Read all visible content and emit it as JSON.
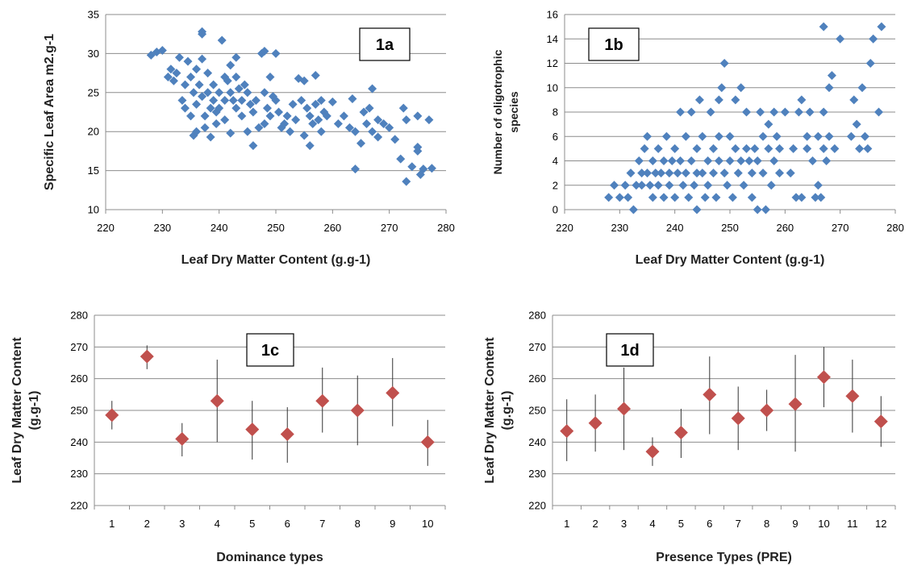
{
  "chart_data": [
    {
      "id": "1a",
      "type": "scatter",
      "panel_label": "1a",
      "xlabel": "Leaf Dry Matter  Content (g.g-1)",
      "ylabel": "Specific Leaf Area m2.g-1",
      "xlim": [
        220,
        280
      ],
      "ylim": [
        10,
        35
      ],
      "xticks": [
        220,
        230,
        240,
        250,
        260,
        270,
        280
      ],
      "yticks": [
        10,
        15,
        20,
        25,
        30,
        35
      ],
      "grid": "horizontal",
      "marker_color": "#4F81BD",
      "points": [
        [
          228,
          29.8
        ],
        [
          229,
          30.2
        ],
        [
          230,
          30.4
        ],
        [
          231,
          27
        ],
        [
          231.5,
          28
        ],
        [
          232,
          26.5
        ],
        [
          232.5,
          27.5
        ],
        [
          233,
          29.5
        ],
        [
          233.5,
          24
        ],
        [
          234,
          26
        ],
        [
          234,
          23
        ],
        [
          234.5,
          29
        ],
        [
          235,
          27
        ],
        [
          235,
          22
        ],
        [
          235.5,
          25
        ],
        [
          235.5,
          19.5
        ],
        [
          236,
          28
        ],
        [
          236,
          23.5
        ],
        [
          236,
          20
        ],
        [
          236.5,
          26
        ],
        [
          237,
          32.8
        ],
        [
          237,
          32.5
        ],
        [
          237,
          29.3
        ],
        [
          237,
          24.5
        ],
        [
          237.5,
          22
        ],
        [
          237.5,
          20.5
        ],
        [
          238,
          27.5
        ],
        [
          238,
          25
        ],
        [
          238.5,
          23
        ],
        [
          238.5,
          19.3
        ],
        [
          239,
          26
        ],
        [
          239,
          24
        ],
        [
          239.5,
          22.5
        ],
        [
          239.5,
          21
        ],
        [
          240,
          25
        ],
        [
          240,
          23
        ],
        [
          240.5,
          31.7
        ],
        [
          241,
          27
        ],
        [
          241,
          24
        ],
        [
          241,
          21.5
        ],
        [
          241.5,
          26.5
        ],
        [
          242,
          28.5
        ],
        [
          242,
          25
        ],
        [
          242,
          19.8
        ],
        [
          242.5,
          24
        ],
        [
          243,
          29.5
        ],
        [
          243,
          27
        ],
        [
          243,
          23
        ],
        [
          243.5,
          25.5
        ],
        [
          244,
          24
        ],
        [
          244,
          22
        ],
        [
          244.5,
          26
        ],
        [
          245,
          20
        ],
        [
          245,
          25
        ],
        [
          245.5,
          23.5
        ],
        [
          246,
          22.5
        ],
        [
          246,
          18.2
        ],
        [
          246.5,
          24
        ],
        [
          247,
          20.5
        ],
        [
          247.5,
          30
        ],
        [
          248,
          30.3
        ],
        [
          248,
          25
        ],
        [
          248,
          21
        ],
        [
          248.5,
          23
        ],
        [
          249,
          27
        ],
        [
          249,
          22
        ],
        [
          249.5,
          24.5
        ],
        [
          250,
          30
        ],
        [
          250,
          24
        ],
        [
          250.5,
          22.5
        ],
        [
          251,
          20.5
        ],
        [
          251.5,
          21
        ],
        [
          252,
          22
        ],
        [
          252.5,
          20
        ],
        [
          253,
          23.5
        ],
        [
          253.5,
          21.5
        ],
        [
          254,
          26.8
        ],
        [
          254.5,
          24
        ],
        [
          255,
          26.5
        ],
        [
          255,
          19.5
        ],
        [
          255.5,
          23
        ],
        [
          256,
          22
        ],
        [
          256,
          18.2
        ],
        [
          256.5,
          21
        ],
        [
          257,
          27.2
        ],
        [
          257,
          23.5
        ],
        [
          257.5,
          21.5
        ],
        [
          258,
          24
        ],
        [
          258,
          20
        ],
        [
          258.5,
          22.5
        ],
        [
          259,
          22
        ],
        [
          260,
          23.8
        ],
        [
          261,
          21
        ],
        [
          262,
          22
        ],
        [
          263,
          20.5
        ],
        [
          263.5,
          24.2
        ],
        [
          264,
          15.2
        ],
        [
          264,
          20
        ],
        [
          265,
          18.5
        ],
        [
          265.5,
          22.5
        ],
        [
          266,
          21
        ],
        [
          266.5,
          23
        ],
        [
          267,
          25.5
        ],
        [
          267,
          20
        ],
        [
          268,
          21.5
        ],
        [
          268,
          19.3
        ],
        [
          269,
          21
        ],
        [
          270,
          20.5
        ],
        [
          271,
          19
        ],
        [
          272,
          16.5
        ],
        [
          272.5,
          23
        ],
        [
          273,
          13.6
        ],
        [
          273,
          21.5
        ],
        [
          274,
          15.5
        ],
        [
          275,
          22
        ],
        [
          275,
          18
        ],
        [
          275,
          17.5
        ],
        [
          275.5,
          14.5
        ],
        [
          276,
          15.2
        ],
        [
          277,
          21.5
        ],
        [
          277.5,
          15.3
        ]
      ]
    },
    {
      "id": "1b",
      "type": "scatter",
      "panel_label": "1b",
      "xlabel": "Leaf Dry Matter  Content (g.g-1)",
      "ylabel_lines": [
        "Number of oligotrophic",
        "species"
      ],
      "xlim": [
        220,
        280
      ],
      "ylim": [
        0,
        16
      ],
      "xticks": [
        220,
        230,
        240,
        250,
        260,
        270,
        280
      ],
      "yticks": [
        0,
        2,
        4,
        6,
        8,
        10,
        12,
        14,
        16
      ],
      "grid": "horizontal",
      "marker_color": "#4F81BD",
      "points": [
        [
          228,
          1
        ],
        [
          229,
          2
        ],
        [
          230,
          1
        ],
        [
          231,
          2
        ],
        [
          231.5,
          1
        ],
        [
          232,
          3
        ],
        [
          232.5,
          0
        ],
        [
          233,
          2
        ],
        [
          233.5,
          4
        ],
        [
          234,
          3
        ],
        [
          234,
          2
        ],
        [
          234.5,
          5
        ],
        [
          235,
          6
        ],
        [
          235,
          3
        ],
        [
          235.5,
          2
        ],
        [
          236,
          4
        ],
        [
          236,
          1
        ],
        [
          236.5,
          3
        ],
        [
          237,
          5
        ],
        [
          237,
          2
        ],
        [
          237.5,
          3
        ],
        [
          238,
          4
        ],
        [
          238,
          1
        ],
        [
          238.5,
          6
        ],
        [
          239,
          3
        ],
        [
          239,
          2
        ],
        [
          239.5,
          4
        ],
        [
          240,
          5
        ],
        [
          240,
          1
        ],
        [
          240.5,
          3
        ],
        [
          241,
          8
        ],
        [
          241,
          4
        ],
        [
          241.5,
          2
        ],
        [
          242,
          6
        ],
        [
          242,
          3
        ],
        [
          242.5,
          1
        ],
        [
          243,
          8
        ],
        [
          243,
          4
        ],
        [
          243.5,
          2
        ],
        [
          244,
          5
        ],
        [
          244,
          3
        ],
        [
          244,
          0
        ],
        [
          244.5,
          9
        ],
        [
          245,
          6
        ],
        [
          245,
          3
        ],
        [
          245.5,
          1
        ],
        [
          246,
          4
        ],
        [
          246,
          2
        ],
        [
          246.5,
          8
        ],
        [
          247,
          5
        ],
        [
          247,
          3
        ],
        [
          247.5,
          1
        ],
        [
          248,
          9
        ],
        [
          248,
          6
        ],
        [
          248,
          4
        ],
        [
          248.5,
          10
        ],
        [
          249,
          3
        ],
        [
          249,
          12
        ],
        [
          249.5,
          2
        ],
        [
          250,
          6
        ],
        [
          250,
          4
        ],
        [
          250.5,
          1
        ],
        [
          251,
          9
        ],
        [
          251,
          5
        ],
        [
          251.5,
          3
        ],
        [
          252,
          10
        ],
        [
          252,
          4
        ],
        [
          252.5,
          2
        ],
        [
          253,
          5
        ],
        [
          253,
          8
        ],
        [
          253.5,
          4
        ],
        [
          254,
          3
        ],
        [
          254,
          1
        ],
        [
          254.5,
          5
        ],
        [
          255,
          4
        ],
        [
          255,
          0
        ],
        [
          255.5,
          8
        ],
        [
          256,
          6
        ],
        [
          256,
          3
        ],
        [
          256.5,
          0
        ],
        [
          257,
          7
        ],
        [
          257,
          5
        ],
        [
          257.5,
          2
        ],
        [
          258,
          4
        ],
        [
          258,
          8
        ],
        [
          258.5,
          6
        ],
        [
          259,
          3
        ],
        [
          259,
          5
        ],
        [
          260,
          8
        ],
        [
          261,
          3
        ],
        [
          261.5,
          5
        ],
        [
          262,
          1
        ],
        [
          262.5,
          8
        ],
        [
          263,
          9
        ],
        [
          263,
          1
        ],
        [
          264,
          6
        ],
        [
          264,
          5
        ],
        [
          264.5,
          8
        ],
        [
          265,
          4
        ],
        [
          265.5,
          1
        ],
        [
          266,
          6
        ],
        [
          266,
          2
        ],
        [
          266.5,
          1
        ],
        [
          267,
          15
        ],
        [
          267,
          8
        ],
        [
          267,
          5
        ],
        [
          267.5,
          4
        ],
        [
          268,
          6
        ],
        [
          268,
          10
        ],
        [
          268.5,
          11
        ],
        [
          269,
          5
        ],
        [
          270,
          14
        ],
        [
          272,
          6
        ],
        [
          272.5,
          9
        ],
        [
          273,
          7
        ],
        [
          273.5,
          5
        ],
        [
          274,
          10
        ],
        [
          274.5,
          6
        ],
        [
          275,
          5
        ],
        [
          275.5,
          12
        ],
        [
          276,
          14
        ],
        [
          277,
          8
        ],
        [
          277.5,
          15
        ]
      ]
    },
    {
      "id": "1c",
      "type": "scatter",
      "panel_label": "1c",
      "xlabel": "Dominance types",
      "ylabel_lines": [
        "Leaf Dry Matter  Content",
        "(g.g-1)"
      ],
      "ylim": [
        220,
        280
      ],
      "yticks": [
        220,
        230,
        240,
        250,
        260,
        270,
        280
      ],
      "categories": [
        "1",
        "2",
        "3",
        "4",
        "5",
        "6",
        "7",
        "8",
        "9",
        "10"
      ],
      "values": [
        248.5,
        267,
        241,
        253,
        244,
        242.5,
        253,
        250,
        255.5,
        240
      ],
      "err_low": [
        244,
        263,
        235.5,
        240,
        234.5,
        233.5,
        243,
        239,
        245,
        232.5
      ],
      "err_high": [
        253,
        270.5,
        246,
        266,
        253,
        251,
        263.5,
        261,
        266.5,
        247
      ],
      "grid": "horizontal",
      "marker_color": "#C0504D"
    },
    {
      "id": "1d",
      "type": "scatter",
      "panel_label": "1d",
      "xlabel": "Presence Types (PRE)",
      "ylabel_lines": [
        "Leaf Dry Matter  Content",
        "(g.g-1)"
      ],
      "ylim": [
        220,
        280
      ],
      "yticks": [
        220,
        230,
        240,
        250,
        260,
        270,
        280
      ],
      "categories": [
        "1",
        "2",
        "3",
        "4",
        "5",
        "6",
        "7",
        "8",
        "9",
        "10",
        "11",
        "12"
      ],
      "values": [
        243.5,
        246,
        250.5,
        237,
        243,
        255,
        247.5,
        250,
        252,
        260.5,
        254.5,
        246.5
      ],
      "err_low": [
        234,
        237,
        237.5,
        232.5,
        235,
        242.5,
        237.5,
        243.5,
        237,
        251,
        243,
        238.5
      ],
      "err_high": [
        253.5,
        255,
        263.5,
        241.5,
        250.5,
        267,
        257.5,
        256.5,
        267.5,
        270,
        266,
        254.5
      ],
      "grid": "horizontal",
      "marker_color": "#C0504D"
    }
  ]
}
